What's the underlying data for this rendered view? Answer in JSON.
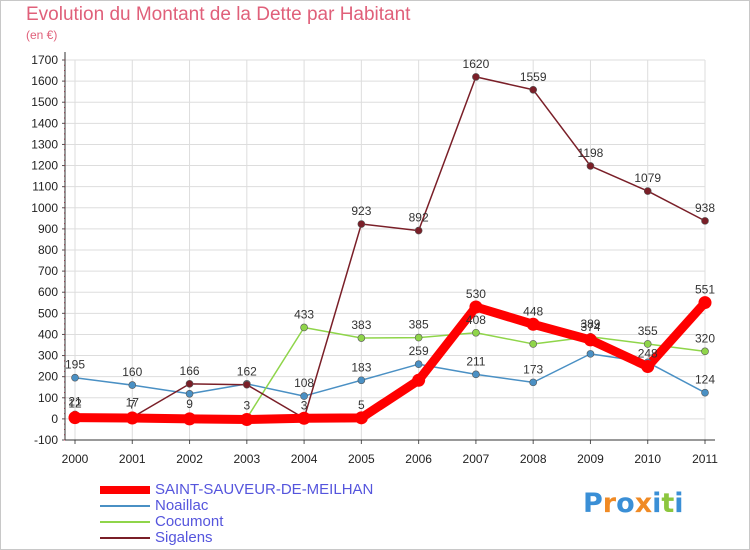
{
  "chart_data": {
    "type": "line",
    "title": "Evolution du Montant de la Dette par Habitant",
    "ylabel": "(en €)",
    "x": [
      "2000",
      "2001",
      "2002",
      "2003",
      "2004",
      "2005",
      "2006",
      "2007",
      "2008",
      "2009",
      "2010",
      "2011"
    ],
    "ylim": [
      -100,
      1700
    ],
    "yticks": [
      -100,
      0,
      100,
      200,
      300,
      400,
      500,
      600,
      700,
      800,
      900,
      1000,
      1100,
      1200,
      1300,
      1400,
      1500,
      1600,
      1700
    ],
    "grid": true,
    "legend_position": "bottom-left",
    "series": [
      {
        "name": "SAINT-SAUVEUR-DE-MEILHAN",
        "color": "#ff0000",
        "values": [
          6,
          4,
          0,
          -3,
          3,
          5,
          183,
          530,
          448,
          374,
          248,
          551
        ],
        "labels": [
          "",
          "",
          "",
          "",
          "",
          "5",
          "",
          "530",
          "448",
          "374",
          "248",
          "551"
        ]
      },
      {
        "name": "Noaillac",
        "color": "#4a90c4",
        "values": [
          195,
          160,
          119,
          166,
          108,
          183,
          259,
          211,
          173,
          308,
          268,
          124
        ],
        "labels": [
          "195",
          "160",
          "",
          "",
          "108",
          "183",
          "259",
          "211",
          "173",
          "",
          "",
          "124"
        ]
      },
      {
        "name": "Cocumont",
        "color": "#8fd54a",
        "values": [
          21,
          17,
          9,
          3,
          433,
          383,
          385,
          408,
          355,
          389,
          355,
          320
        ],
        "labels": [
          "21",
          "17",
          "9",
          "3",
          "433",
          "383",
          "385",
          "408",
          "",
          "389",
          "355",
          "320"
        ]
      },
      {
        "name": "Sigalens",
        "color": "#7a1f28",
        "values": [
          12,
          7,
          166,
          162,
          3,
          923,
          892,
          1620,
          1559,
          1198,
          1079,
          938
        ],
        "labels": [
          "12",
          "7",
          "166",
          "162",
          "3",
          "923",
          "892",
          "1620",
          "1559",
          "1198",
          "1079",
          "938"
        ]
      }
    ]
  },
  "logo": {
    "text": "Proxiti",
    "colors": [
      "#3a8fd6",
      "#f08a24",
      "#3a8fd6",
      "#f08a24",
      "#3a8fd6",
      "#8cc63e",
      "#3a8fd6"
    ]
  }
}
